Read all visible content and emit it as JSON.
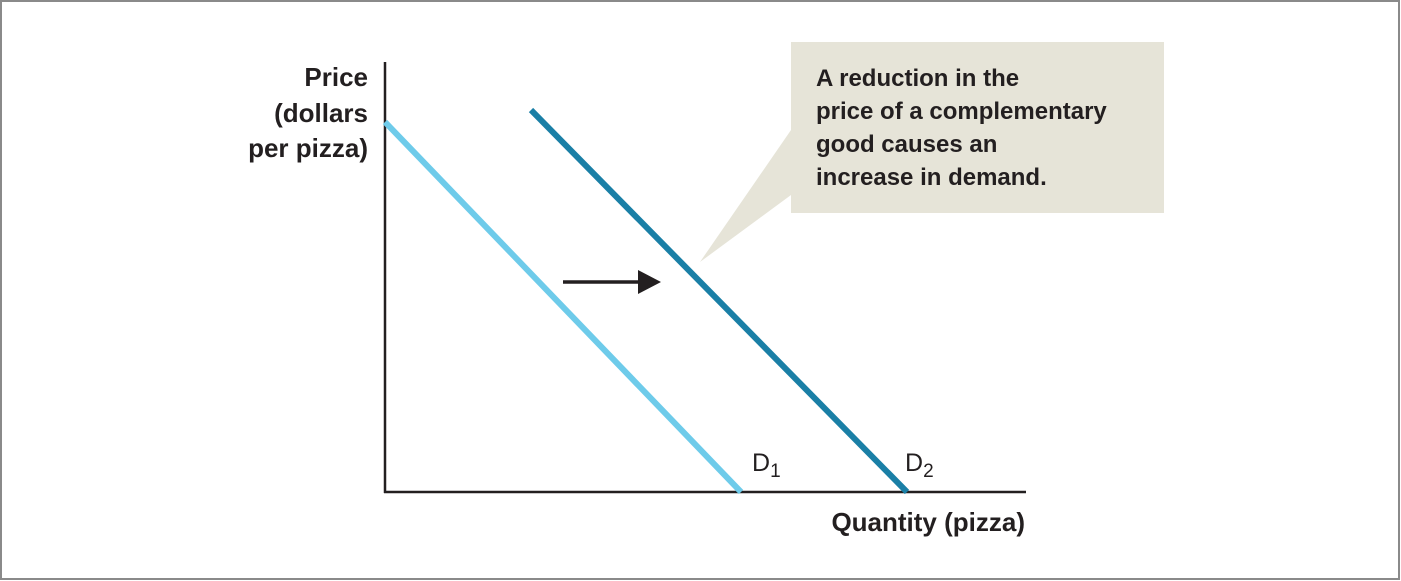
{
  "diagram": {
    "y_axis_label": [
      "Price",
      "(dollars",
      "per pizza)"
    ],
    "x_axis_label": "Quantity (pizza)",
    "curves": [
      {
        "letter": "D",
        "subscript": "1"
      },
      {
        "letter": "D",
        "subscript": "2"
      }
    ],
    "annotation": [
      "A reduction in the",
      "price of a complementary",
      "good causes an",
      "increase in demand."
    ]
  }
}
